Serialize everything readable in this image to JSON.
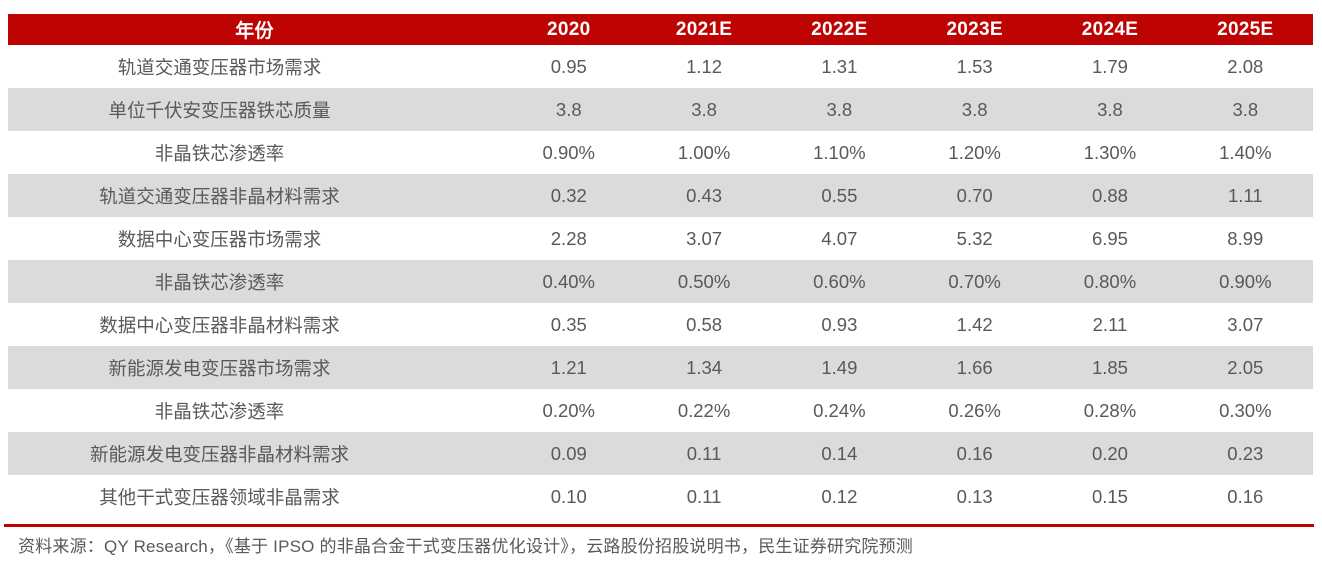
{
  "table": {
    "header": {
      "label": "年份",
      "years": [
        "2020",
        "2021E",
        "2022E",
        "2023E",
        "2024E",
        "2025E"
      ]
    },
    "rows": [
      {
        "label": "轨道交通变压器市场需求",
        "values": [
          "0.95",
          "1.12",
          "1.31",
          "1.53",
          "1.79",
          "2.08"
        ]
      },
      {
        "label": "单位千伏安变压器铁芯质量",
        "values": [
          "3.8",
          "3.8",
          "3.8",
          "3.8",
          "3.8",
          "3.8"
        ]
      },
      {
        "label": "非晶铁芯渗透率",
        "values": [
          "0.90%",
          "1.00%",
          "1.10%",
          "1.20%",
          "1.30%",
          "1.40%"
        ]
      },
      {
        "label": "轨道交通变压器非晶材料需求",
        "values": [
          "0.32",
          "0.43",
          "0.55",
          "0.70",
          "0.88",
          "1.11"
        ]
      },
      {
        "label": "数据中心变压器市场需求",
        "values": [
          "2.28",
          "3.07",
          "4.07",
          "5.32",
          "6.95",
          "8.99"
        ]
      },
      {
        "label": "非晶铁芯渗透率",
        "values": [
          "0.40%",
          "0.50%",
          "0.60%",
          "0.70%",
          "0.80%",
          "0.90%"
        ]
      },
      {
        "label": "数据中心变压器非晶材料需求",
        "values": [
          "0.35",
          "0.58",
          "0.93",
          "1.42",
          "2.11",
          "3.07"
        ]
      },
      {
        "label": "新能源发电变压器市场需求",
        "values": [
          "1.21",
          "1.34",
          "1.49",
          "1.66",
          "1.85",
          "2.05"
        ]
      },
      {
        "label": "非晶铁芯渗透率",
        "values": [
          "0.20%",
          "0.22%",
          "0.24%",
          "0.26%",
          "0.28%",
          "0.30%"
        ]
      },
      {
        "label": "新能源发电变压器非晶材料需求",
        "values": [
          "0.09",
          "0.11",
          "0.14",
          "0.16",
          "0.20",
          "0.23"
        ]
      },
      {
        "label": "其他干式变压器领域非晶需求",
        "values": [
          "0.10",
          "0.11",
          "0.12",
          "0.13",
          "0.15",
          "0.16"
        ]
      }
    ]
  },
  "footer": {
    "source": "资料来源：QY Research，《基于 IPSO 的非晶合金干式变压器优化设计》，云路股份招股说明书，民生证券研究院预测"
  },
  "colors": {
    "header_bg": "#BE0303",
    "alt_row_bg": "#DBDBDB",
    "body_text": "#595959",
    "header_text": "#FFFFFF",
    "rule": "#BE0303"
  },
  "chart_data": {
    "type": "table",
    "columns": [
      "年份",
      "2020",
      "2021E",
      "2022E",
      "2023E",
      "2024E",
      "2025E"
    ],
    "rows": [
      [
        "轨道交通变压器市场需求",
        0.95,
        1.12,
        1.31,
        1.53,
        1.79,
        2.08
      ],
      [
        "单位千伏安变压器铁芯质量",
        3.8,
        3.8,
        3.8,
        3.8,
        3.8,
        3.8
      ],
      [
        "非晶铁芯渗透率",
        "0.90%",
        "1.00%",
        "1.10%",
        "1.20%",
        "1.30%",
        "1.40%"
      ],
      [
        "轨道交通变压器非晶材料需求",
        0.32,
        0.43,
        0.55,
        0.7,
        0.88,
        1.11
      ],
      [
        "数据中心变压器市场需求",
        2.28,
        3.07,
        4.07,
        5.32,
        6.95,
        8.99
      ],
      [
        "非晶铁芯渗透率",
        "0.40%",
        "0.50%",
        "0.60%",
        "0.70%",
        "0.80%",
        "0.90%"
      ],
      [
        "数据中心变压器非晶材料需求",
        0.35,
        0.58,
        0.93,
        1.42,
        2.11,
        3.07
      ],
      [
        "新能源发电变压器市场需求",
        1.21,
        1.34,
        1.49,
        1.66,
        1.85,
        2.05
      ],
      [
        "非晶铁芯渗透率",
        "0.20%",
        "0.22%",
        "0.24%",
        "0.26%",
        "0.28%",
        "0.30%"
      ],
      [
        "新能源发电变压器非晶材料需求",
        0.09,
        0.11,
        0.14,
        0.16,
        0.2,
        0.23
      ],
      [
        "其他干式变压器领域非晶需求",
        0.1,
        0.11,
        0.12,
        0.13,
        0.15,
        0.16
      ]
    ],
    "source_note": "资料来源：QY Research，《基于 IPSO 的非晶合金干式变压器优化设计》，云路股份招股说明书，民生证券研究院预测"
  }
}
